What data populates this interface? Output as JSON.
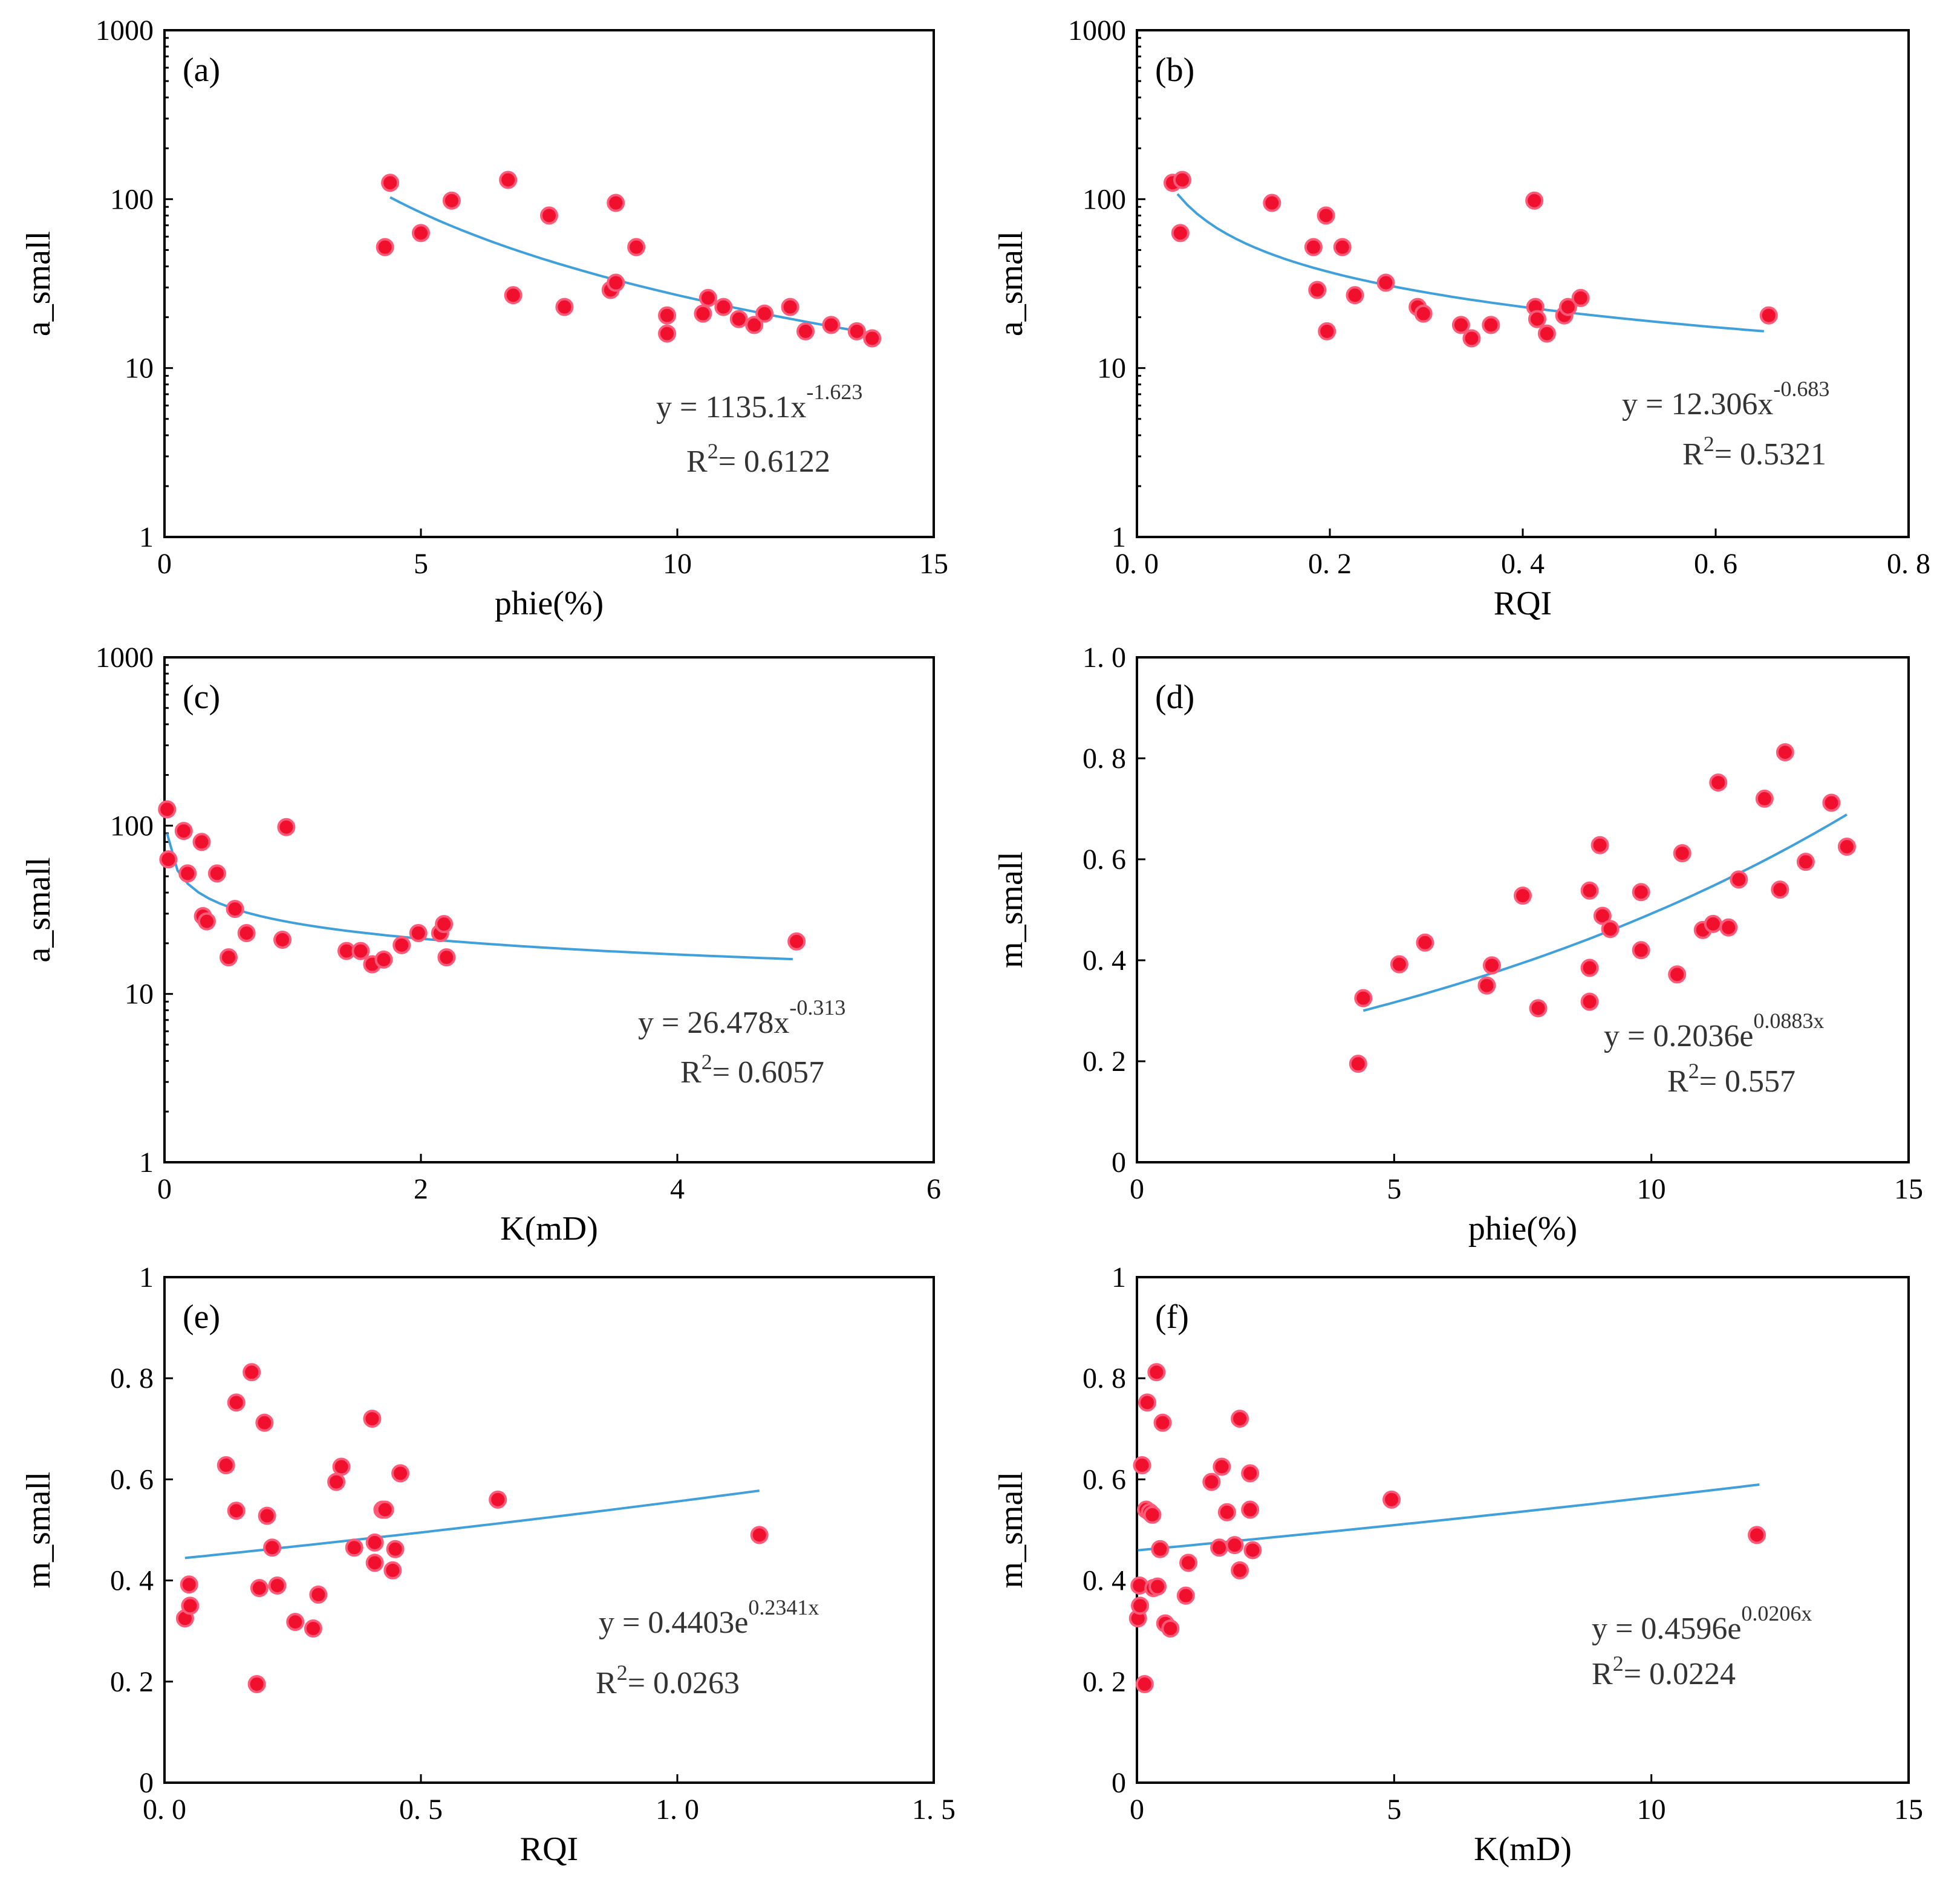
{
  "colors": {
    "point": "#f0102e",
    "fit": "#3fa0dc",
    "axis": "#000000"
  },
  "chart_data": [
    {
      "id": "a",
      "type": "scatter",
      "panel_label": "(a)",
      "xlabel": "phie(%)",
      "ylabel": "a_small",
      "xlim": [
        0,
        15
      ],
      "ylim": [
        1,
        1000
      ],
      "yscale": "log",
      "xticks": [
        0,
        5,
        10,
        15
      ],
      "xtick_labels": [
        "0",
        "5",
        "10",
        "15"
      ],
      "yticks": [
        1,
        10,
        100,
        1000
      ],
      "ytick_labels": [
        "1",
        "10",
        "100",
        "1000"
      ],
      "fit": {
        "model": "power",
        "a": 1135.1,
        "b": -1.623,
        "x_range": [
          4.4,
          13.8
        ]
      },
      "equation": {
        "base": "y = 1135.1x",
        "sup": "-1.623",
        "r2": "= 0.6122"
      },
      "x": [
        4.3,
        4.4,
        5.0,
        5.6,
        6.7,
        6.8,
        7.5,
        7.8,
        8.8,
        8.7,
        8.8,
        9.2,
        9.8,
        9.8,
        10.5,
        10.6,
        10.9,
        11.2,
        11.5,
        11.7,
        12.2,
        12.5,
        13.0,
        13.5,
        13.8
      ],
      "y": [
        52,
        125,
        63,
        98,
        130,
        27,
        80,
        23,
        95,
        29,
        32,
        52,
        20.5,
        16,
        21,
        26,
        23,
        19.5,
        18,
        21,
        23,
        16.5,
        18,
        16.5,
        15
      ]
    },
    {
      "id": "b",
      "type": "scatter",
      "panel_label": "(b)",
      "xlabel": "RQI",
      "ylabel": "a_small",
      "xlim": [
        0,
        0.8
      ],
      "ylim": [
        1,
        1000
      ],
      "yscale": "log",
      "xticks": [
        0,
        0.2,
        0.4,
        0.6,
        0.8
      ],
      "xtick_labels": [
        "0. 0",
        "0. 2",
        "0. 4",
        "0. 6",
        "0. 8"
      ],
      "yticks": [
        1,
        10,
        100,
        1000
      ],
      "ytick_labels": [
        "1",
        "10",
        "100",
        "1000"
      ],
      "fit": {
        "model": "power",
        "a": 12.306,
        "b": -0.683,
        "x_range": [
          0.042,
          0.65
        ]
      },
      "equation": {
        "base": "y = 12.306x",
        "sup": "-0.683",
        "r2": "= 0.5321"
      },
      "x": [
        0.037,
        0.047,
        0.045,
        0.14,
        0.183,
        0.187,
        0.196,
        0.197,
        0.213,
        0.226,
        0.258,
        0.291,
        0.297,
        0.336,
        0.347,
        0.367,
        0.412,
        0.413,
        0.415,
        0.425,
        0.443,
        0.447,
        0.46,
        0.655
      ],
      "y": [
        125,
        130,
        63,
        95,
        52,
        29,
        80,
        16.5,
        52,
        27,
        32,
        23,
        21,
        18,
        15,
        18,
        98,
        23,
        19.5,
        16,
        20.5,
        23,
        26,
        20.5
      ]
    },
    {
      "id": "c",
      "type": "scatter",
      "panel_label": "(c)",
      "xlabel": "K(mD)",
      "ylabel": "a_small",
      "xlim": [
        0,
        6
      ],
      "ylim": [
        1,
        1000
      ],
      "yscale": "log",
      "xticks": [
        0,
        2,
        4,
        6
      ],
      "xtick_labels": [
        "0",
        "2",
        "4",
        "6"
      ],
      "yticks": [
        1,
        10,
        100,
        1000
      ],
      "ytick_labels": [
        "1",
        "10",
        "100",
        "1000"
      ],
      "fit": {
        "model": "power",
        "a": 26.478,
        "b": -0.313,
        "x_range": [
          0.02,
          4.9
        ]
      },
      "equation": {
        "base": "y = 26.478x",
        "sup": "-0.313",
        "r2": "= 0.6057"
      },
      "x": [
        0.02,
        0.03,
        0.15,
        0.18,
        0.29,
        0.3,
        0.33,
        0.41,
        0.5,
        0.55,
        0.64,
        0.92,
        0.95,
        1.42,
        1.53,
        1.62,
        1.71,
        1.85,
        1.98,
        2.15,
        2.18,
        2.2,
        4.93
      ],
      "y": [
        125,
        63,
        93,
        52,
        80,
        29,
        27,
        52,
        16.5,
        32,
        23,
        21,
        98,
        18,
        18,
        15,
        16,
        19.5,
        23,
        23,
        26,
        16.5,
        20.5
      ]
    },
    {
      "id": "d",
      "type": "scatter",
      "panel_label": "(d)",
      "xlabel": "phie(%)",
      "ylabel": "m_small",
      "xlim": [
        0,
        15
      ],
      "ylim": [
        0,
        1.0
      ],
      "yscale": "linear",
      "xticks": [
        0,
        5,
        10,
        15
      ],
      "xtick_labels": [
        "0",
        "5",
        "10",
        "15"
      ],
      "yticks": [
        0,
        0.2,
        0.4,
        0.6,
        0.8,
        1.0
      ],
      "ytick_labels": [
        "0",
        "0. 2",
        "0. 4",
        "0. 6",
        "0. 8",
        "1. 0"
      ],
      "fit": {
        "model": "exp",
        "a": 0.2036,
        "b": 0.0883,
        "x_range": [
          4.4,
          13.8
        ]
      },
      "equation": {
        "base": "y = 0.2036e",
        "sup": "0.0883x",
        "r2": "= 0.557"
      },
      "x": [
        4.3,
        4.4,
        5.1,
        5.6,
        6.8,
        6.9,
        7.5,
        7.8,
        8.8,
        8.8,
        8.8,
        9.0,
        9.05,
        9.2,
        9.8,
        9.8,
        10.5,
        10.6,
        11.0,
        11.2,
        11.3,
        11.5,
        11.7,
        12.2,
        12.5,
        12.6,
        13.0,
        13.5,
        13.8
      ],
      "y": [
        0.195,
        0.325,
        0.392,
        0.435,
        0.35,
        0.39,
        0.528,
        0.305,
        0.538,
        0.385,
        0.318,
        0.628,
        0.488,
        0.462,
        0.535,
        0.42,
        0.372,
        0.612,
        0.46,
        0.472,
        0.752,
        0.465,
        0.56,
        0.72,
        0.54,
        0.812,
        0.595,
        0.712,
        0.625
      ]
    },
    {
      "id": "e",
      "type": "scatter",
      "panel_label": "(e)",
      "xlabel": "RQI",
      "ylabel": "m_small",
      "xlim": [
        0,
        1.5
      ],
      "ylim": [
        0,
        1
      ],
      "yscale": "linear",
      "xticks": [
        0,
        0.5,
        1.0,
        1.5
      ],
      "xtick_labels": [
        "0. 0",
        "0. 5",
        "1. 0",
        "1. 5"
      ],
      "yticks": [
        0,
        0.2,
        0.4,
        0.6,
        0.8,
        1
      ],
      "ytick_labels": [
        "0",
        "0. 2",
        "0. 4",
        "0. 6",
        "0. 8",
        "1"
      ],
      "fit": {
        "model": "exp",
        "a": 0.4403,
        "b": 0.2341,
        "x_range": [
          0.04,
          1.16
        ]
      },
      "equation": {
        "base": "y = 0.4403e",
        "sup": "0.2341x",
        "r2": "= 0.0263"
      },
      "x": [
        0.04,
        0.048,
        0.05,
        0.12,
        0.14,
        0.14,
        0.17,
        0.18,
        0.185,
        0.195,
        0.2,
        0.21,
        0.22,
        0.255,
        0.29,
        0.3,
        0.335,
        0.345,
        0.37,
        0.405,
        0.41,
        0.41,
        0.425,
        0.43,
        0.445,
        0.45,
        0.46,
        0.65,
        1.16
      ],
      "y": [
        0.325,
        0.392,
        0.35,
        0.628,
        0.752,
        0.538,
        0.812,
        0.195,
        0.385,
        0.712,
        0.528,
        0.465,
        0.39,
        0.318,
        0.305,
        0.372,
        0.595,
        0.625,
        0.465,
        0.72,
        0.475,
        0.435,
        0.54,
        0.54,
        0.42,
        0.462,
        0.612,
        0.56,
        0.49
      ]
    },
    {
      "id": "f",
      "type": "scatter",
      "panel_label": "(f)",
      "xlabel": "K(mD)",
      "ylabel": "m_small",
      "xlim": [
        0,
        15
      ],
      "ylim": [
        0,
        1
      ],
      "yscale": "linear",
      "xticks": [
        0,
        5,
        10,
        15
      ],
      "xtick_labels": [
        "0",
        "5",
        "10",
        "15"
      ],
      "yticks": [
        0,
        0.2,
        0.4,
        0.6,
        0.8,
        1
      ],
      "ytick_labels": [
        "0",
        "0. 2",
        "0. 4",
        "0. 6",
        "0. 8",
        "1"
      ],
      "fit": {
        "model": "exp",
        "a": 0.4596,
        "b": 0.0206,
        "x_range": [
          0.02,
          12.1
        ]
      },
      "equation": {
        "base": "y = 0.4596e",
        "sup": "0.0206x",
        "r2": "= 0.0224"
      },
      "x": [
        0.02,
        0.05,
        0.06,
        0.1,
        0.15,
        0.18,
        0.2,
        0.25,
        0.3,
        0.32,
        0.38,
        0.4,
        0.45,
        0.5,
        0.55,
        0.65,
        0.95,
        1.0,
        1.45,
        1.6,
        1.65,
        1.75,
        1.9,
        2.0,
        2.0,
        2.2,
        2.2,
        2.25,
        4.95,
        12.05
      ],
      "y": [
        0.325,
        0.39,
        0.35,
        0.628,
        0.195,
        0.54,
        0.752,
        0.535,
        0.53,
        0.385,
        0.812,
        0.388,
        0.462,
        0.712,
        0.315,
        0.305,
        0.37,
        0.435,
        0.595,
        0.465,
        0.625,
        0.535,
        0.47,
        0.42,
        0.72,
        0.612,
        0.54,
        0.46,
        0.56,
        0.49
      ]
    }
  ]
}
